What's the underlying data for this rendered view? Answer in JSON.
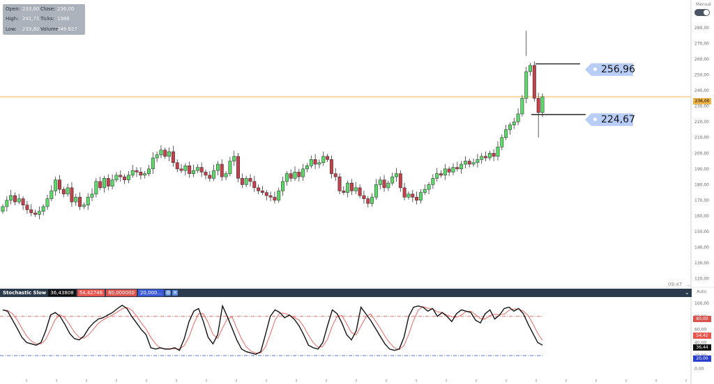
{
  "ohlc_panel": {
    "open_label": "Open:",
    "open_value": "233,60",
    "close_label": "Close:",
    "close_value": "236,00",
    "high_label": "High:",
    "high_value": "241,71",
    "ticks_label": "Ticks:",
    "ticks_value": "1986",
    "low_label": "Low:",
    "low_value": "233,60",
    "volume_label": "Volume:",
    "volume_value": "349 627"
  },
  "scale_mode": "Manual",
  "price_axis": {
    "ticks": [
      "290,00",
      "280,00",
      "270,00",
      "260,00",
      "250,00",
      "240,00",
      "230,00",
      "220,00",
      "210,00",
      "200,00",
      "190,00",
      "180,00",
      "170,00",
      "160,00",
      "150,00",
      "140,00",
      "130,00",
      "120,00"
    ],
    "current_price": "236,00",
    "current_price_value": 236.0
  },
  "time_label": "09:47",
  "axis_dots": "...",
  "callouts": {
    "upper": "256,96",
    "lower": "224,67"
  },
  "indicator": {
    "name": "Stochastic Slow",
    "values": [
      "36,43808",
      "54,42746",
      "80,000000",
      "20,000..."
    ],
    "mode": "Auto",
    "axis_ticks": [
      "100,00",
      "80,00",
      "60,00",
      "40,00",
      "20,00",
      "0,00"
    ],
    "badge_80": "80,00",
    "badge_54": "54,42",
    "badge_36": "36,44",
    "badge_20": "20,00"
  },
  "colors": {
    "up_candle": "#5dd86a",
    "down_candle": "#c4404b",
    "current_line": "#f0b64a",
    "k_line": "#111111",
    "d_line": "#e8564f",
    "upper_band": "#d9534f",
    "lower_band": "#3a5ad9",
    "callout_bg": "#b8cdf7",
    "indicator_bar": "#2c3a4e"
  },
  "chart_data": {
    "type": "candlestick",
    "ylim": [
      115,
      295
    ],
    "candles_close": [
      166,
      170,
      173,
      169,
      171,
      167,
      164,
      162,
      161,
      163,
      166,
      171,
      176,
      183,
      177,
      174,
      178,
      169,
      172,
      166,
      167,
      172,
      174,
      182,
      178,
      184,
      179,
      183,
      186,
      185,
      183,
      186,
      189,
      188,
      186,
      187,
      190,
      197,
      199,
      202,
      198,
      201,
      194,
      190,
      189,
      192,
      187,
      189,
      191,
      188,
      186,
      184,
      189,
      193,
      185,
      187,
      195,
      198,
      184,
      180,
      184,
      182,
      178,
      176,
      175,
      173,
      172,
      170,
      176,
      182,
      187,
      184,
      188,
      185,
      190,
      192,
      196,
      193,
      194,
      198,
      196,
      187,
      185,
      176,
      175,
      181,
      176,
      178,
      173,
      171,
      168,
      172,
      180,
      183,
      178,
      181,
      185,
      187,
      178,
      172,
      174,
      172,
      170,
      175,
      177,
      180,
      184,
      187,
      186,
      190,
      188,
      191,
      190,
      193,
      195,
      193,
      194,
      196,
      198,
      197,
      200,
      198,
      204,
      210,
      215,
      218,
      220,
      225,
      235,
      252,
      256,
      235,
      226,
      236
    ],
    "stochastic_k": [
      90,
      88,
      75,
      62,
      48,
      40,
      38,
      36,
      40,
      58,
      82,
      86,
      80,
      68,
      54,
      46,
      44,
      50,
      62,
      70,
      76,
      78,
      82,
      86,
      92,
      97,
      92,
      80,
      70,
      60,
      52,
      32,
      30,
      32,
      30,
      30,
      32,
      28,
      46,
      72,
      88,
      92,
      72,
      48,
      38,
      52,
      96,
      80,
      62,
      44,
      30,
      26,
      24,
      22,
      26,
      52,
      80,
      90,
      86,
      78,
      82,
      76,
      66,
      52,
      36,
      32,
      30,
      40,
      66,
      90,
      84,
      70,
      52,
      44,
      58,
      94,
      84,
      74,
      62,
      50,
      38,
      30,
      28,
      30,
      48,
      80,
      94,
      96,
      94,
      88,
      92,
      80,
      86,
      80,
      72,
      84,
      90,
      88,
      86,
      74,
      70,
      84,
      90,
      76,
      82,
      92,
      94,
      88,
      92,
      84,
      68,
      54,
      40,
      36
    ]
  }
}
